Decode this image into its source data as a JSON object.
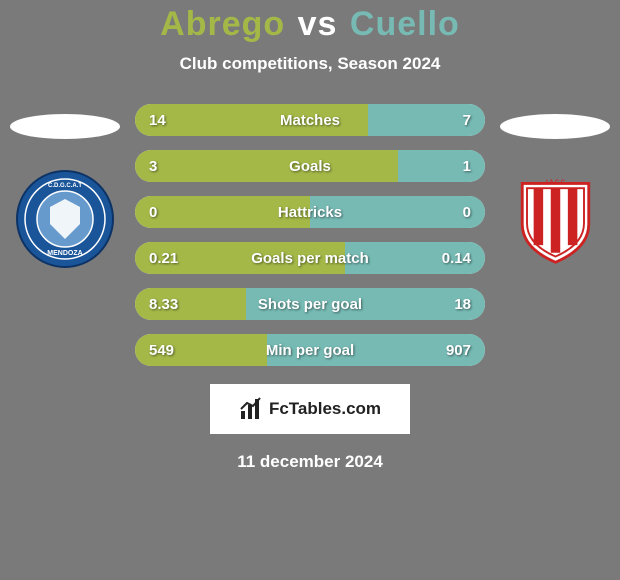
{
  "colors": {
    "page_bg": "#7a7a7a",
    "title_p1": "#a4b848",
    "title_vs": "#ffffff",
    "title_p2": "#77bab4",
    "subtitle": "#ffffff",
    "ellipse": "#ffffff",
    "stat_bg": "#ffffff",
    "stat_fill_left": "#a4b848",
    "stat_fill_right": "#77bab4",
    "stat_text": "#ffffff",
    "footer_bg": "#ffffff",
    "footer_text": "#222222",
    "date_text": "#ffffff",
    "crest1_outer": "#1a5599",
    "crest1_inner": "#6699cc",
    "crest1_border": "#ffffff",
    "crest2_bg": "#ffffff",
    "crest2_red": "#cc2222"
  },
  "title": {
    "p1": "Abrego",
    "vs": "vs",
    "p2": "Cuello"
  },
  "subtitle": "Club competitions, Season 2024",
  "stats": [
    {
      "label": "Matches",
      "left_val": "14",
      "right_val": "7",
      "left_pct": 66.7
    },
    {
      "label": "Goals",
      "left_val": "3",
      "right_val": "1",
      "left_pct": 75.0
    },
    {
      "label": "Hattricks",
      "left_val": "0",
      "right_val": "0",
      "left_pct": 50.0
    },
    {
      "label": "Goals per match",
      "left_val": "0.21",
      "right_val": "0.14",
      "left_pct": 60.0
    },
    {
      "label": "Shots per goal",
      "left_val": "8.33",
      "right_val": "18",
      "left_pct": 31.6
    },
    {
      "label": "Min per goal",
      "left_val": "549",
      "right_val": "907",
      "left_pct": 37.7
    }
  ],
  "footer": {
    "brand": "FcTables.com"
  },
  "date": "11 december 2024"
}
